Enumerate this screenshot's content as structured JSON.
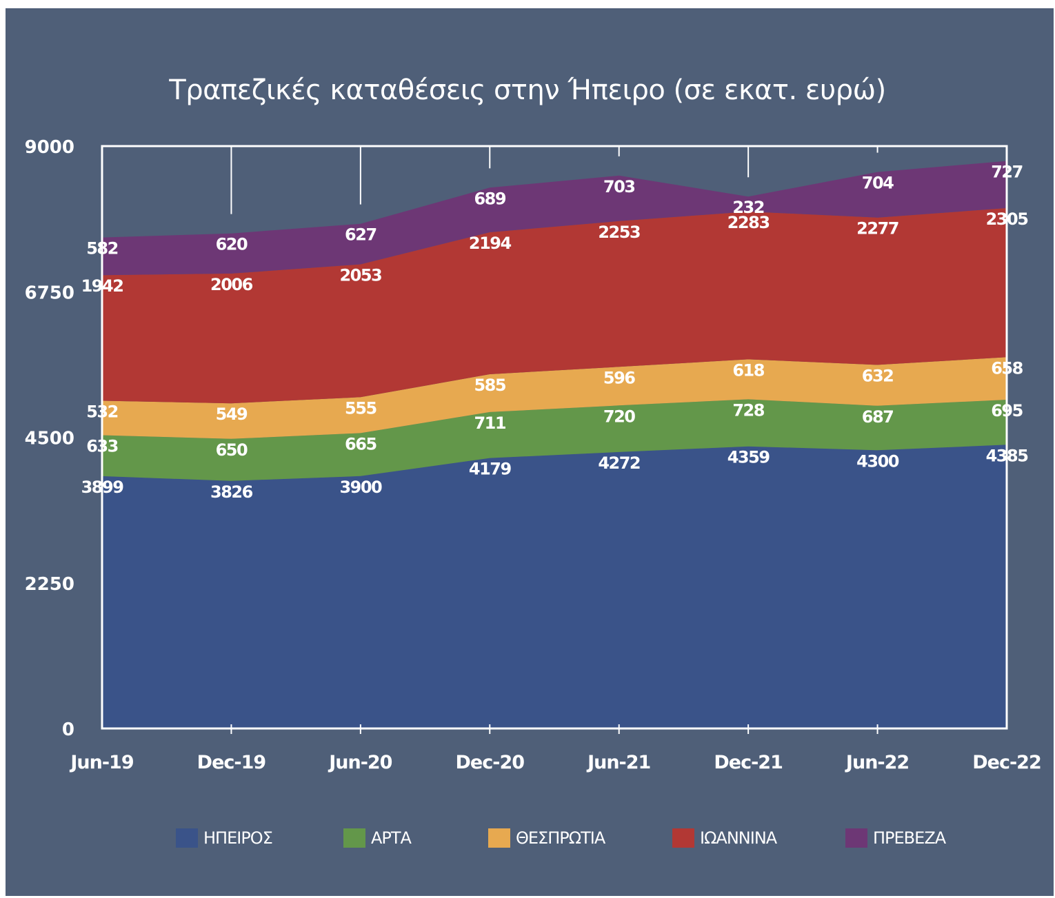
{
  "chart_data": {
    "type": "area",
    "stacked": true,
    "title": "Τραπεζικές καταθέσεις στην Ήπειρο (σε εκατ. ευρώ)",
    "categories": [
      "Jun-19",
      "Dec-19",
      "Jun-20",
      "Dec-20",
      "Jun-21",
      "Dec-21",
      "Jun-22",
      "Dec-22"
    ],
    "ylim": [
      0,
      9000
    ],
    "yticks": [
      "0",
      "2250",
      "4500",
      "6750",
      "9000"
    ],
    "grid": false,
    "legend_position": "bottom",
    "series": [
      {
        "name": "ΗΠΕΙΡΟΣ",
        "color": "#3a5389",
        "values": [
          3899,
          3826,
          3900,
          4179,
          4272,
          4359,
          4300,
          4385
        ]
      },
      {
        "name": "ΑΡΤΑ",
        "color": "#63974a",
        "values": [
          633,
          650,
          665,
          711,
          720,
          728,
          687,
          695
        ]
      },
      {
        "name": "ΘΕΣΠΡΩΤΙΑ",
        "color": "#e7a950",
        "values": [
          532,
          549,
          555,
          585,
          596,
          618,
          632,
          658
        ]
      },
      {
        "name": "ΙΩΑΝΝΙΝΑ",
        "color": "#b23834",
        "values": [
          1942,
          2006,
          2053,
          2194,
          2253,
          2283,
          2277,
          2305
        ]
      },
      {
        "name": "ΠΡΕΒΕΖΑ",
        "color": "#6d3775",
        "values": [
          582,
          620,
          627,
          689,
          703,
          232,
          704,
          727
        ]
      }
    ]
  }
}
